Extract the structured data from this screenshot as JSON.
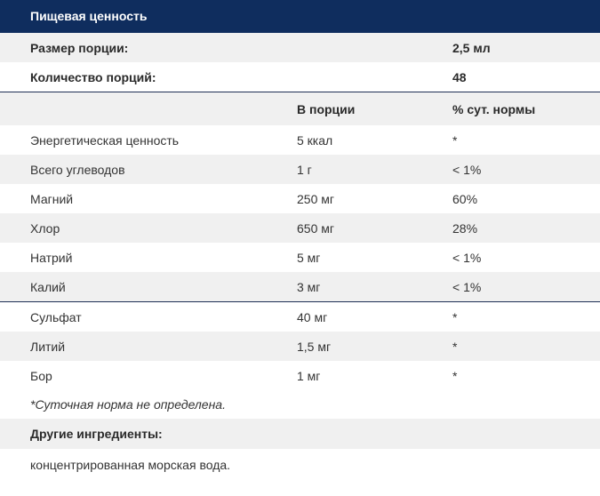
{
  "title": "Пищевая ценность",
  "serving_size": {
    "label": "Размер порции:",
    "value": "2,5 мл"
  },
  "servings": {
    "label": "Количество порций:",
    "value": "48"
  },
  "columns": {
    "c2": "В порции",
    "c3": "% сут. нормы"
  },
  "rows": [
    {
      "name": "Энергетическая ценность",
      "amount": "5 ккал",
      "dv": "*"
    },
    {
      "name": "Всего углеводов",
      "amount": "1 г",
      "dv": "< 1%"
    },
    {
      "name": "Магний",
      "amount": "250 мг",
      "dv": "60%"
    },
    {
      "name": "Хлор",
      "amount": "650 мг",
      "dv": "28%"
    },
    {
      "name": "Натрий",
      "amount": "5 мг",
      "dv": "< 1%"
    },
    {
      "name": "Калий",
      "amount": "3 мг",
      "dv": "< 1%"
    },
    {
      "name": "Сульфат",
      "amount": "40 мг",
      "dv": "*"
    },
    {
      "name": "Литий",
      "amount": "1,5 мг",
      "dv": "*"
    },
    {
      "name": "Бор",
      "amount": "1 мг",
      "dv": "*"
    }
  ],
  "footnote": "*Суточная норма не определена.",
  "other_ingredients": {
    "label": "Другие ингредиенты:",
    "value": "концентрированная морская вода."
  },
  "colors": {
    "header_bg": "#0f2d5e",
    "row_shade": "#f0f0f0",
    "rule": "#1f2f55"
  }
}
